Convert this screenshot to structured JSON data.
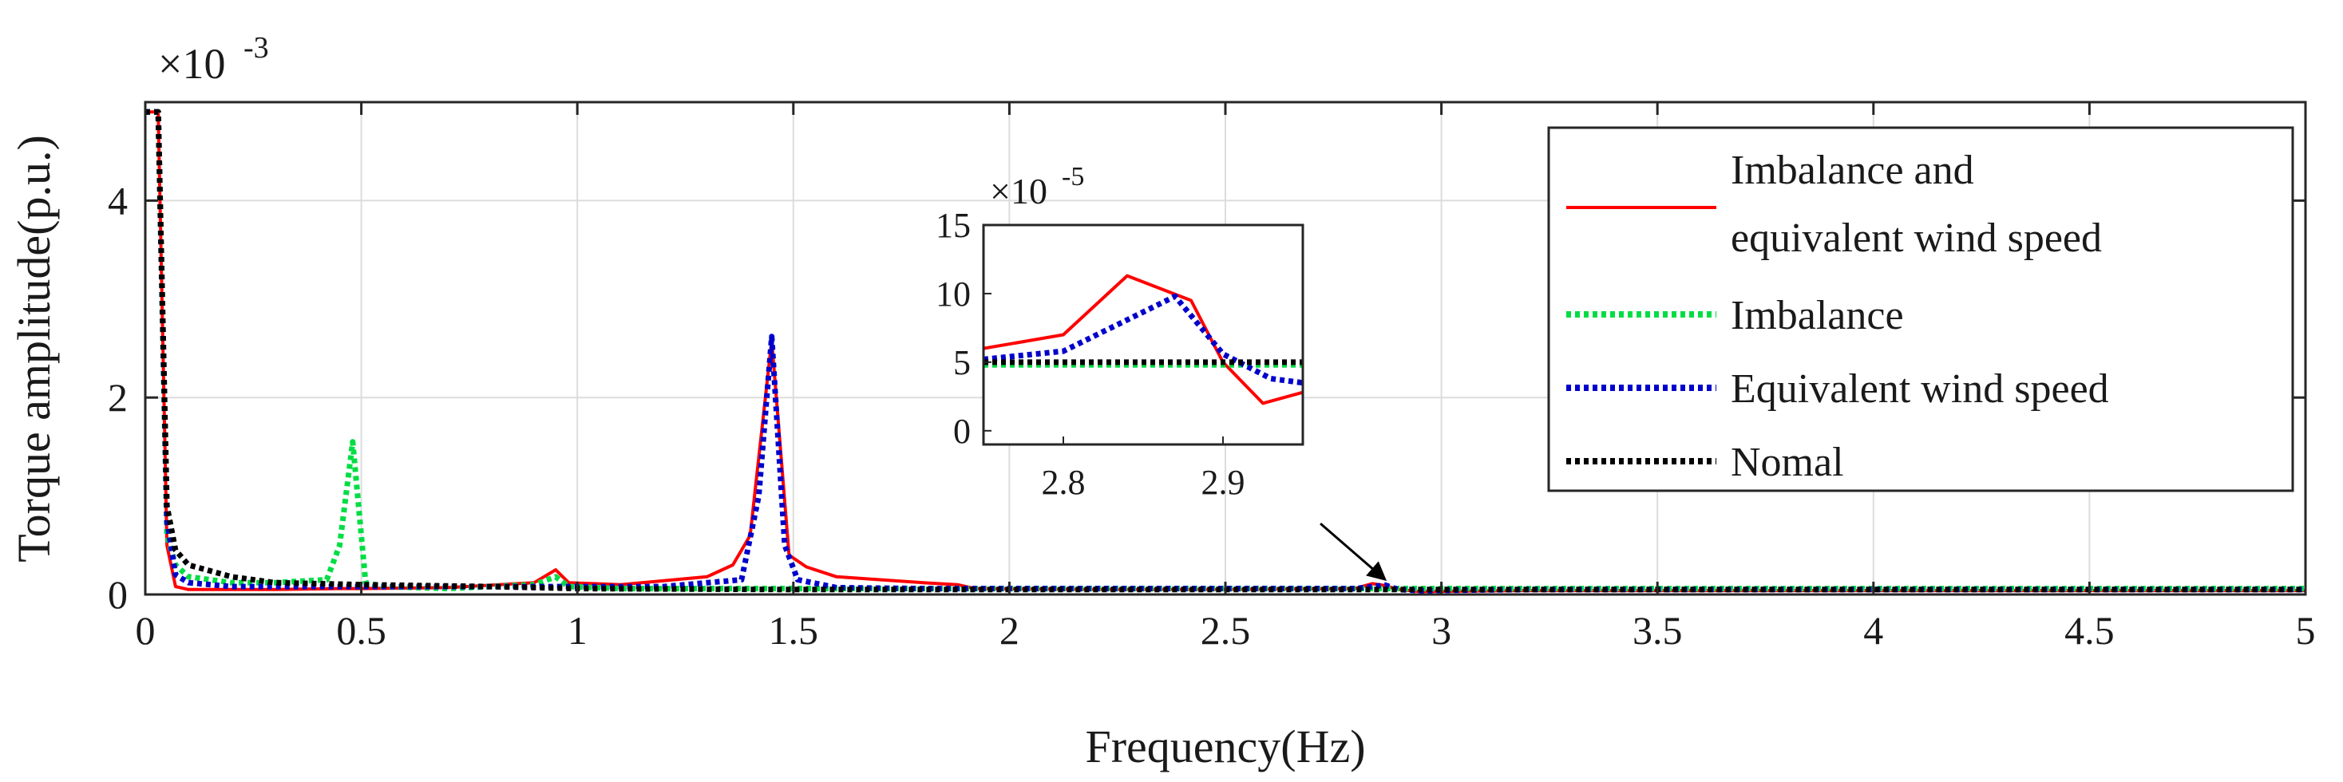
{
  "chart_data": {
    "type": "line",
    "xlabel": "Frequency(Hz)",
    "ylabel": "Torque amplitude(p.u.)",
    "xlim": [
      0,
      5
    ],
    "ylim": [
      0,
      5
    ],
    "y_multiplier": {
      "base": "×10",
      "exponent": "-3"
    },
    "grid": true,
    "xticks": [
      0,
      0.5,
      1,
      1.5,
      2,
      2.5,
      3,
      3.5,
      4,
      4.5,
      5
    ],
    "xtick_labels": [
      "0",
      "0.5",
      "1",
      "1.5",
      "2",
      "2.5",
      "3",
      "3.5",
      "4",
      "4.5",
      "5"
    ],
    "yticks": [
      0,
      2,
      4
    ],
    "ytick_labels": [
      "0",
      "2",
      "4"
    ],
    "legend_position": "top-right",
    "series": [
      {
        "name": "Imbalance and equivalent wind speed",
        "legend_label_lines": [
          "Imbalance and",
          "equivalent wind speed"
        ],
        "color": "#ff0000",
        "style": "solid",
        "x": [
          0.0,
          0.03,
          0.05,
          0.07,
          0.1,
          0.2,
          0.3,
          0.45,
          0.5,
          0.7,
          0.9,
          0.95,
          0.98,
          1.1,
          1.3,
          1.36,
          1.4,
          1.45,
          1.49,
          1.53,
          1.6,
          1.8,
          1.88,
          1.92,
          2.2,
          2.5,
          2.8,
          2.84,
          2.87,
          2.9,
          2.95,
          3.2,
          3.5,
          4.0,
          4.5,
          5.0
        ],
        "y": [
          4.9,
          4.9,
          0.5,
          0.08,
          0.05,
          0.05,
          0.05,
          0.06,
          0.06,
          0.07,
          0.12,
          0.25,
          0.12,
          0.1,
          0.18,
          0.3,
          0.6,
          2.58,
          0.4,
          0.28,
          0.18,
          0.12,
          0.1,
          0.06,
          0.05,
          0.05,
          0.06,
          0.11,
          0.09,
          0.05,
          0.03,
          0.04,
          0.04,
          0.04,
          0.04,
          0.04
        ]
      },
      {
        "name": "Imbalance",
        "legend_label_lines": [
          "Imbalance"
        ],
        "color": "#00dd44",
        "style": "dotted",
        "x": [
          0.0,
          0.03,
          0.05,
          0.07,
          0.1,
          0.2,
          0.3,
          0.42,
          0.45,
          0.48,
          0.51,
          0.55,
          0.7,
          0.9,
          0.95,
          0.98,
          1.1,
          1.4,
          1.8,
          2.2,
          2.6,
          3.0,
          3.5,
          4.0,
          4.5,
          5.0
        ],
        "y": [
          4.9,
          4.9,
          0.6,
          0.3,
          0.18,
          0.12,
          0.12,
          0.15,
          0.5,
          1.55,
          0.12,
          0.08,
          0.06,
          0.1,
          0.18,
          0.08,
          0.06,
          0.06,
          0.06,
          0.06,
          0.06,
          0.06,
          0.06,
          0.06,
          0.06,
          0.06
        ]
      },
      {
        "name": "Equivalent wind speed",
        "legend_label_lines": [
          "Equivalent wind speed"
        ],
        "color": "#0000cc",
        "style": "dotted",
        "x": [
          0.0,
          0.03,
          0.05,
          0.07,
          0.1,
          0.2,
          0.4,
          0.7,
          1.0,
          1.2,
          1.38,
          1.42,
          1.45,
          1.48,
          1.51,
          1.6,
          1.8,
          2.2,
          2.6,
          2.8,
          2.87,
          2.9,
          2.95,
          3.2,
          3.5,
          4.0,
          4.5,
          5.0
        ],
        "y": [
          4.9,
          4.9,
          0.75,
          0.2,
          0.12,
          0.08,
          0.08,
          0.08,
          0.08,
          0.08,
          0.15,
          1.0,
          2.62,
          0.5,
          0.15,
          0.07,
          0.06,
          0.06,
          0.06,
          0.06,
          0.095,
          0.05,
          0.04,
          0.05,
          0.05,
          0.05,
          0.05,
          0.05
        ]
      },
      {
        "name": "Nomal",
        "legend_label_lines": [
          "Nomal"
        ],
        "color": "#000000",
        "style": "dotted",
        "x": [
          0.0,
          0.03,
          0.05,
          0.07,
          0.1,
          0.2,
          0.3,
          0.5,
          0.8,
          1.0,
          1.5,
          2.0,
          2.5,
          3.0,
          3.5,
          4.0,
          4.5,
          5.0
        ],
        "y": [
          4.9,
          4.9,
          0.9,
          0.45,
          0.3,
          0.18,
          0.12,
          0.1,
          0.08,
          0.06,
          0.05,
          0.05,
          0.05,
          0.05,
          0.05,
          0.05,
          0.05,
          0.05
        ]
      }
    ],
    "inset": {
      "xlim": [
        2.75,
        2.95
      ],
      "ylim": [
        -1,
        15
      ],
      "xticks": [
        2.8,
        2.9
      ],
      "xtick_labels": [
        "2.8",
        "2.9"
      ],
      "yticks": [
        0,
        5,
        10,
        15
      ],
      "ytick_labels": [
        "0",
        "5",
        "10",
        "15"
      ],
      "y_multiplier": {
        "base": "×10",
        "exponent": "-5"
      },
      "series": [
        {
          "name": "Imbalance and equivalent wind speed",
          "color": "#ff0000",
          "style": "solid",
          "x": [
            2.75,
            2.8,
            2.84,
            2.88,
            2.9,
            2.925,
            2.95
          ],
          "y": [
            6.0,
            7.0,
            11.3,
            9.5,
            5.0,
            2.0,
            2.8
          ]
        },
        {
          "name": "Imbalance",
          "color": "#00dd44",
          "style": "dotted",
          "x": [
            2.75,
            2.95
          ],
          "y": [
            4.8,
            4.8
          ]
        },
        {
          "name": "Equivalent wind speed",
          "color": "#0000cc",
          "style": "dotted",
          "x": [
            2.75,
            2.8,
            2.87,
            2.9,
            2.93,
            2.95
          ],
          "y": [
            5.2,
            5.8,
            9.8,
            5.6,
            3.8,
            3.5
          ]
        },
        {
          "name": "Nomal",
          "color": "#000000",
          "style": "dotted",
          "x": [
            2.75,
            2.95
          ],
          "y": [
            5.0,
            5.0
          ]
        }
      ]
    },
    "annotations": [
      {
        "type": "arrow",
        "from": [
          2.72,
          0.72
        ],
        "to": [
          2.87,
          0.15
        ],
        "color": "#000000"
      }
    ]
  }
}
